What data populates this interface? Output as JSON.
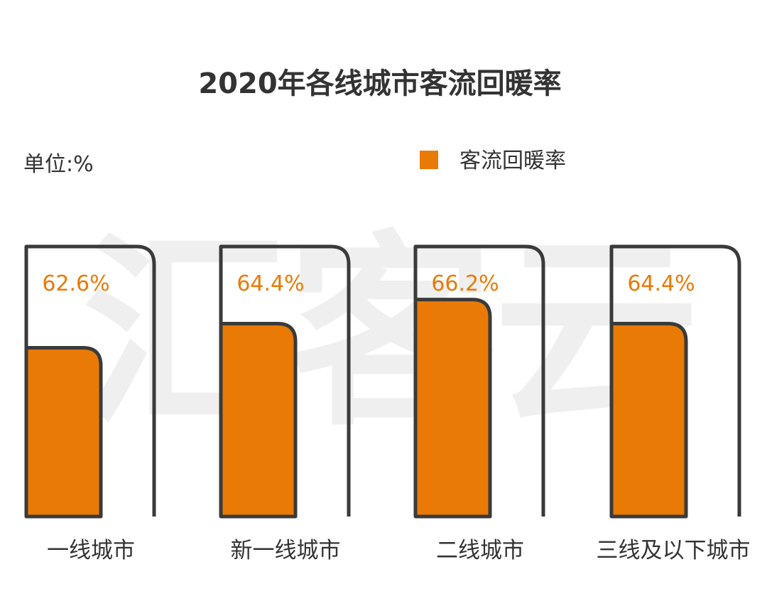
{
  "chart_data": {
    "type": "bar",
    "title": "2020年各线城市客流回暖率",
    "unit_label": "单位:%",
    "legend": {
      "label": "客流回暖率",
      "placement": "top-right"
    },
    "categories": [
      "一线城市",
      "新一线城市",
      "二线城市",
      "三线及以下城市"
    ],
    "series": [
      {
        "name": "客流回暖率",
        "values": [
          62.6,
          64.4,
          66.2,
          64.4
        ],
        "value_labels": [
          "62.6%",
          "64.4%",
          "66.2%",
          "64.4%"
        ]
      }
    ],
    "ylim": [
      50,
      70
    ],
    "grid": false
  },
  "colors": {
    "bar": "#E97A06",
    "frame": "#3a3a3a",
    "title": "#333333",
    "text": "#333333",
    "value_label": "#E97A06",
    "watermark": "#efefef"
  },
  "watermark": {
    "text": "汇客云"
  }
}
